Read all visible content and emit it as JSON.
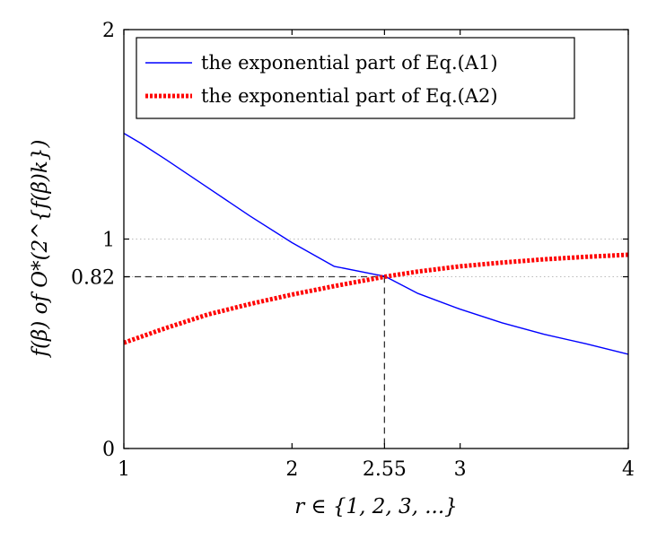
{
  "chart_data": {
    "type": "line",
    "xlabel": "r ∈ {1, 2, 3, ...}",
    "ylabel": "f(β) of O*(2^{f(β)k})",
    "xlim": [
      1,
      4
    ],
    "ylim": [
      0,
      2
    ],
    "x_ticks": [
      1,
      2,
      2.55,
      3,
      4
    ],
    "y_ticks": [
      0,
      0.82,
      1,
      2
    ],
    "x_tick_labels": [
      "1",
      "2",
      "2.55",
      "3",
      "4"
    ],
    "y_tick_labels": [
      "0",
      "0.82",
      "1",
      "2"
    ],
    "legend_position": "top-left",
    "series": [
      {
        "name": "the exponential part of Eq.(A1)",
        "color": "#0000ff",
        "style": "solid",
        "x": [
          1.0,
          1.1,
          1.25,
          1.5,
          1.75,
          2.0,
          2.25,
          2.5,
          2.55,
          2.75,
          3.0,
          3.25,
          3.5,
          3.75,
          4.0
        ],
        "y": [
          1.505,
          1.458,
          1.38,
          1.245,
          1.11,
          0.983,
          0.87,
          0.83,
          0.823,
          0.74,
          0.665,
          0.6,
          0.545,
          0.5,
          0.45
        ]
      },
      {
        "name": "the exponential part of Eq.(A2)",
        "color": "#ff0000",
        "style": "dotted",
        "x": [
          1.0,
          1.25,
          1.5,
          1.75,
          2.0,
          2.25,
          2.55,
          2.75,
          3.0,
          3.25,
          3.5,
          3.75,
          4.0
        ],
        "y": [
          0.505,
          0.575,
          0.64,
          0.69,
          0.735,
          0.775,
          0.82,
          0.845,
          0.87,
          0.888,
          0.903,
          0.915,
          0.925
        ]
      }
    ],
    "reference_lines": {
      "horizontal_dotted": [
        0.82,
        1
      ],
      "dashed_point": {
        "x": 2.55,
        "y": 0.82
      }
    }
  }
}
